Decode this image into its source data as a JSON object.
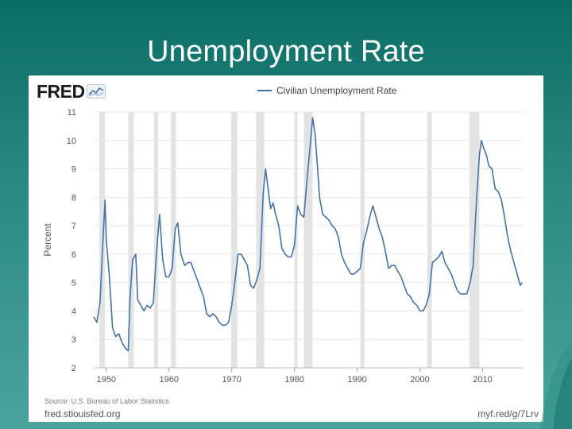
{
  "slide": {
    "title": "Unemployment Rate"
  },
  "logo": {
    "text": "FRED"
  },
  "source": "Source: U.S. Bureau of Labor Statistics",
  "site": "fred.stlouisfed.org",
  "short_link": "myf.red/g/7Lrv",
  "colors": {
    "line": "#4572a7",
    "recession": "#e3e3e3",
    "grid": "#e6e6e6",
    "background": "#2b8a84"
  },
  "chart_data": {
    "type": "line",
    "title": "",
    "xlabel": "",
    "ylabel": "Percent",
    "xlim": [
      1948,
      2016.4
    ],
    "ylim": [
      2,
      11
    ],
    "x_ticks": [
      1950,
      1960,
      1970,
      1980,
      1990,
      2000,
      2010
    ],
    "y_ticks": [
      2,
      3,
      4,
      5,
      6,
      7,
      8,
      9,
      10,
      11
    ],
    "grid": true,
    "legend_position": "top-center",
    "recessions": [
      [
        1948.9,
        1949.8
      ],
      [
        1953.5,
        1954.4
      ],
      [
        1957.6,
        1958.3
      ],
      [
        1960.3,
        1961.1
      ],
      [
        1969.9,
        1970.9
      ],
      [
        1973.9,
        1975.2
      ],
      [
        1980.0,
        1980.5
      ],
      [
        1981.5,
        1982.9
      ],
      [
        1990.5,
        1991.2
      ],
      [
        2001.2,
        2001.9
      ],
      [
        2007.9,
        2009.5
      ]
    ],
    "series": [
      {
        "name": "Civilian Unemployment Rate",
        "x": [
          1948.0,
          1948.5,
          1949.0,
          1949.5,
          1949.8,
          1950.0,
          1950.5,
          1951.0,
          1951.5,
          1952.0,
          1952.5,
          1953.0,
          1953.5,
          1953.8,
          1954.2,
          1954.7,
          1955.0,
          1955.5,
          1956.0,
          1956.5,
          1957.0,
          1957.5,
          1958.0,
          1958.5,
          1959.0,
          1959.5,
          1960.0,
          1960.5,
          1961.0,
          1961.4,
          1961.9,
          1962.5,
          1963.0,
          1963.5,
          1964.0,
          1964.5,
          1965.0,
          1965.5,
          1966.0,
          1966.5,
          1967.0,
          1967.5,
          1968.0,
          1968.5,
          1969.0,
          1969.5,
          1970.0,
          1970.5,
          1971.0,
          1971.5,
          1972.0,
          1972.5,
          1973.0,
          1973.5,
          1974.0,
          1974.5,
          1975.0,
          1975.4,
          1975.8,
          1976.2,
          1976.6,
          1977.0,
          1977.5,
          1978.0,
          1978.5,
          1979.0,
          1979.5,
          1980.0,
          1980.5,
          1981.0,
          1981.5,
          1982.0,
          1982.5,
          1982.9,
          1983.3,
          1983.7,
          1984.0,
          1984.5,
          1985.0,
          1985.5,
          1986.0,
          1986.5,
          1987.0,
          1987.5,
          1988.0,
          1988.5,
          1989.0,
          1989.5,
          1990.0,
          1990.5,
          1991.0,
          1991.5,
          1992.0,
          1992.5,
          1993.0,
          1993.5,
          1994.0,
          1994.5,
          1995.0,
          1995.5,
          1996.0,
          1996.5,
          1997.0,
          1997.5,
          1998.0,
          1998.5,
          1999.0,
          1999.5,
          2000.0,
          2000.5,
          2001.0,
          2001.5,
          2002.0,
          2002.5,
          2003.0,
          2003.5,
          2004.0,
          2004.5,
          2005.0,
          2005.5,
          2006.0,
          2006.5,
          2007.0,
          2007.5,
          2008.0,
          2008.5,
          2009.0,
          2009.5,
          2009.8,
          2010.2,
          2010.6,
          2011.0,
          2011.5,
          2012.0,
          2012.5,
          2013.0,
          2013.5,
          2014.0,
          2014.5,
          2015.0,
          2015.5,
          2016.0,
          2016.3
        ],
        "values": [
          3.8,
          3.6,
          4.3,
          6.6,
          7.9,
          6.5,
          5.2,
          3.4,
          3.1,
          3.2,
          2.9,
          2.7,
          2.6,
          4.5,
          5.8,
          6.0,
          4.4,
          4.2,
          4.0,
          4.2,
          4.1,
          4.3,
          6.0,
          7.4,
          5.8,
          5.2,
          5.2,
          5.5,
          6.9,
          7.1,
          6.0,
          5.6,
          5.7,
          5.7,
          5.4,
          5.1,
          4.8,
          4.5,
          3.9,
          3.8,
          3.9,
          3.8,
          3.6,
          3.5,
          3.5,
          3.6,
          4.2,
          5.0,
          6.0,
          6.0,
          5.8,
          5.6,
          4.9,
          4.8,
          5.1,
          5.5,
          8.1,
          9.0,
          8.3,
          7.6,
          7.8,
          7.4,
          7.0,
          6.2,
          6.0,
          5.9,
          5.9,
          6.3,
          7.7,
          7.4,
          7.3,
          8.6,
          9.8,
          10.8,
          10.2,
          9.0,
          8.0,
          7.4,
          7.3,
          7.2,
          7.0,
          6.9,
          6.6,
          6.0,
          5.7,
          5.5,
          5.3,
          5.3,
          5.4,
          5.5,
          6.4,
          6.8,
          7.3,
          7.7,
          7.3,
          6.9,
          6.6,
          6.1,
          5.5,
          5.6,
          5.6,
          5.4,
          5.2,
          4.9,
          4.6,
          4.5,
          4.3,
          4.2,
          4.0,
          4.0,
          4.2,
          4.6,
          5.7,
          5.8,
          5.9,
          6.1,
          5.7,
          5.5,
          5.3,
          5.0,
          4.7,
          4.6,
          4.6,
          4.6,
          5.0,
          5.6,
          7.8,
          9.5,
          10.0,
          9.7,
          9.5,
          9.1,
          9.0,
          8.3,
          8.2,
          7.9,
          7.3,
          6.6,
          6.1,
          5.7,
          5.3,
          4.9,
          5.0
        ]
      }
    ]
  }
}
